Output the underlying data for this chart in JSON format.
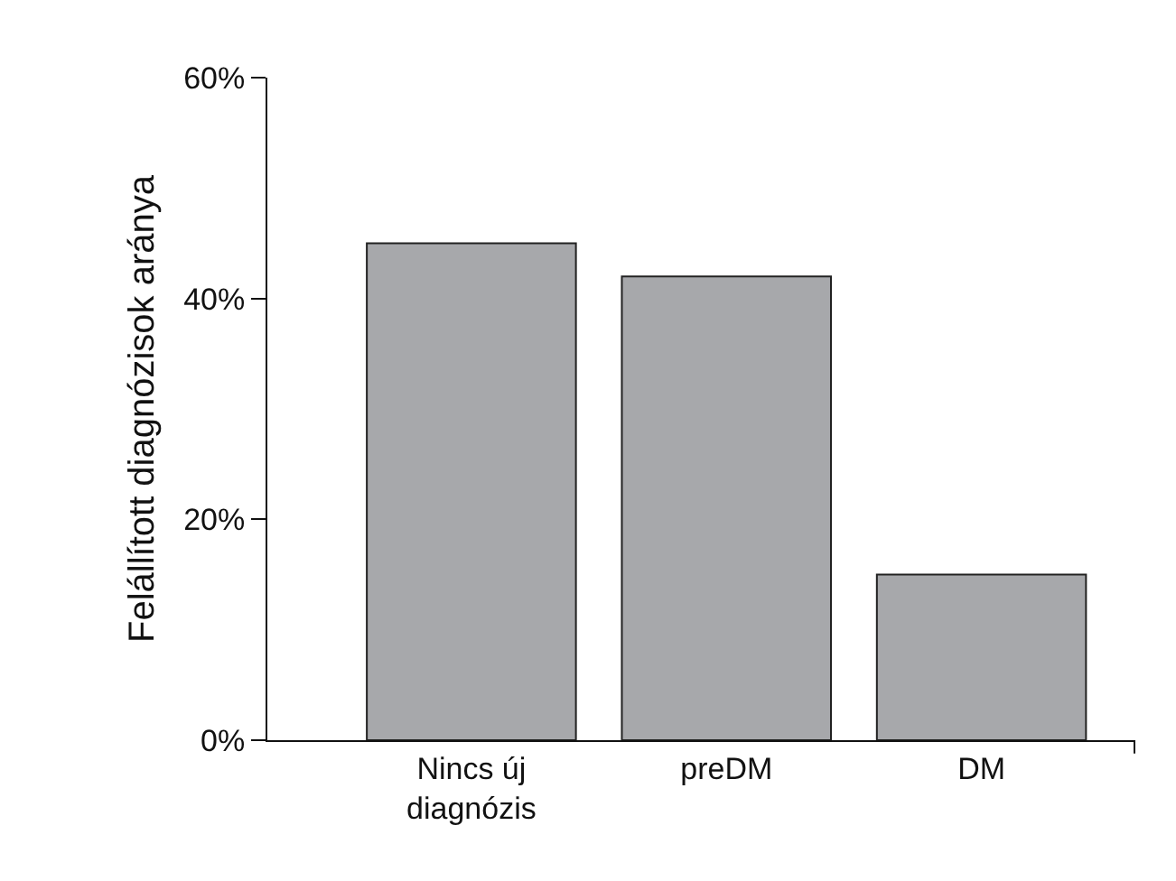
{
  "chart_data": {
    "type": "bar",
    "ylabel": "Felállított diagnózisok aránya",
    "categories": [
      "Nincs új diagnózis",
      "preDM",
      "DM"
    ],
    "values": [
      45,
      42,
      15
    ],
    "color": "#a7a8ab",
    "ylim": [
      0,
      60
    ],
    "yticks": [
      {
        "value": 0,
        "label": "0%"
      },
      {
        "value": 20,
        "label": "20%"
      },
      {
        "value": 40,
        "label": "40%"
      },
      {
        "value": 60,
        "label": "60%"
      }
    ],
    "grid": false
  }
}
